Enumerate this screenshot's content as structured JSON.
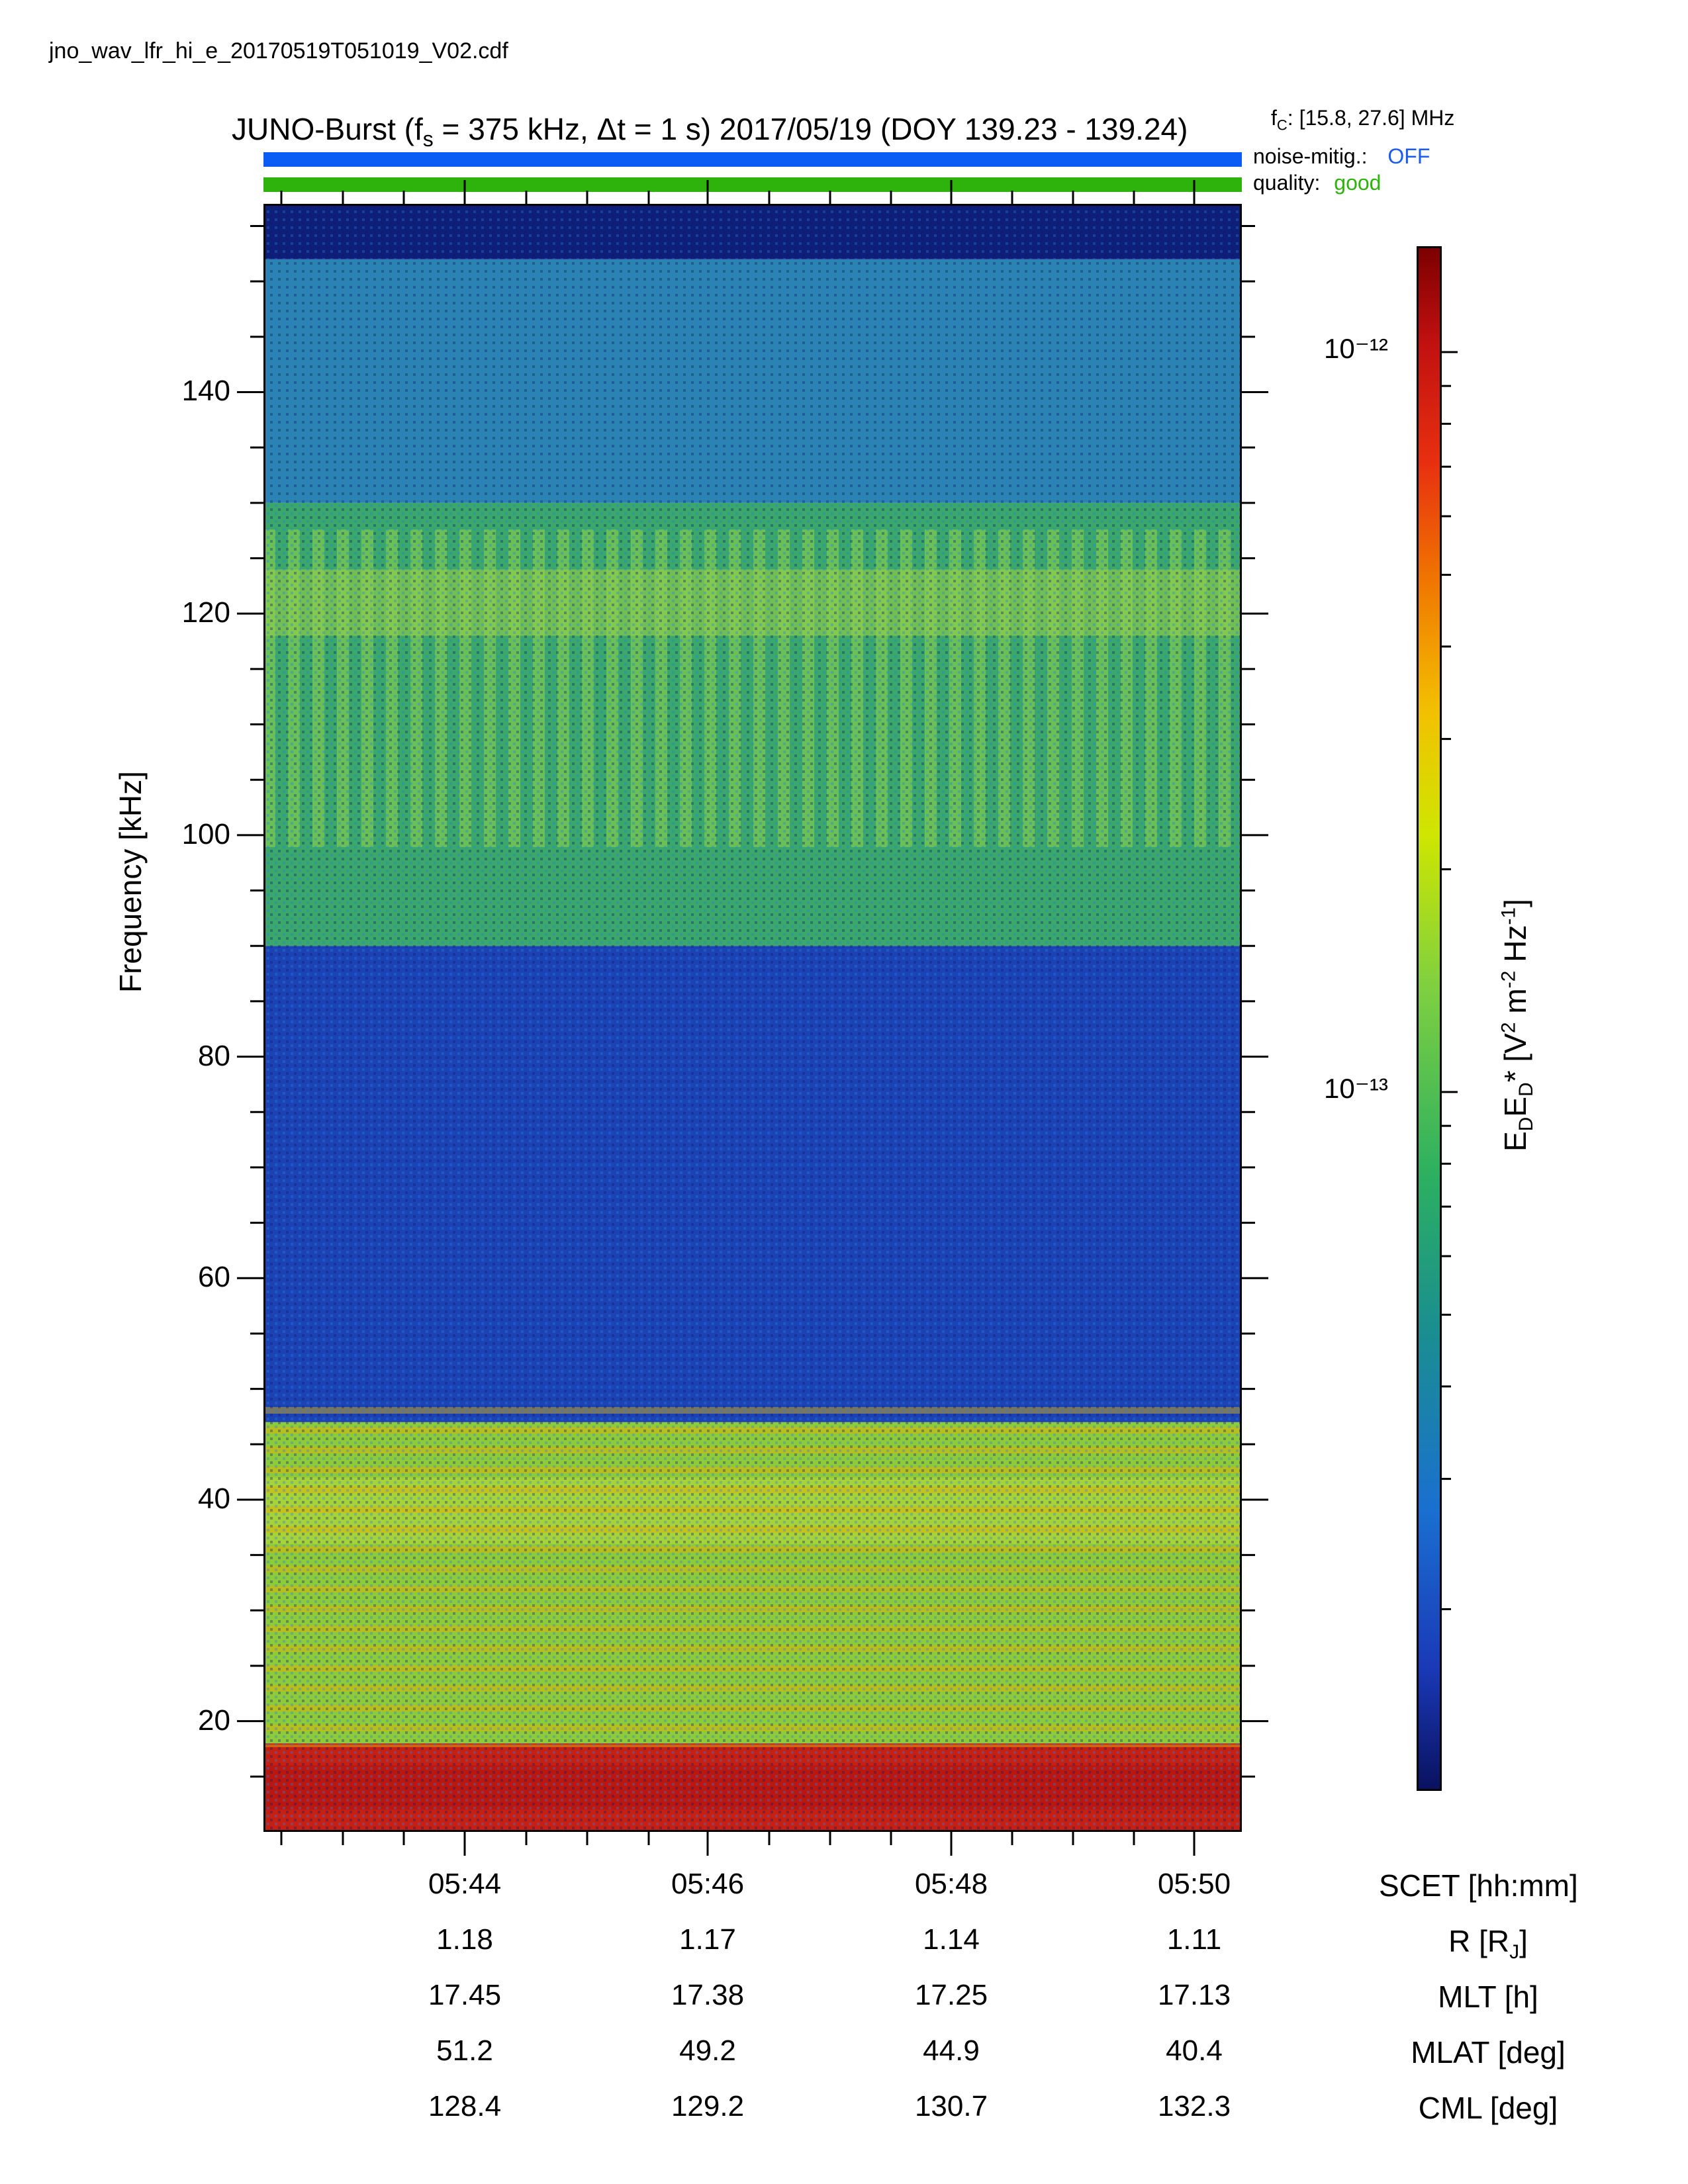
{
  "header": {
    "filename": "jno_wav_lfr_hi_e_20170519T051019_V02.cdf",
    "title_prefix": "JUNO-Burst (f",
    "title_sub": "s",
    "title_suffix": " = 375 kHz, Δt = 1 s)  2017/05/19 (DOY 139.23 - 139.24)",
    "fc_prefix": "f",
    "fc_sub": "C",
    "fc_value": ": [15.8, 27.6] MHz",
    "noise_label": "noise-mitig.:",
    "noise_value": "OFF",
    "quality_label": "quality:",
    "quality_value": "good"
  },
  "colors": {
    "noise_bar": "#0a5cf5",
    "quality_bar": "#2db30c",
    "colormap": [
      "#0a1260",
      "#1a3ab8",
      "#1a6fd0",
      "#1a8f8f",
      "#2db060",
      "#7ed040",
      "#cfe600",
      "#f2c000",
      "#f07a00",
      "#e83010",
      "#7d0000"
    ]
  },
  "chart_data": {
    "type": "heatmap",
    "title": "JUNO-Burst (fs = 375 kHz, Δt = 1 s)  2017/05/19 (DOY 139.23 - 139.24)",
    "ylabel": "Frequency [kHz]",
    "ylim": [
      10,
      157
    ],
    "y_ticks": [
      20,
      40,
      60,
      80,
      100,
      120,
      140
    ],
    "x_ticks": [
      "05:44",
      "05:46",
      "05:48",
      "05:50"
    ],
    "colorbar_label": "E_D E_D* [V² m⁻² Hz⁻¹]",
    "colorbar_scale": "log",
    "colorbar_ticks": [
      "10⁻¹²",
      "10⁻¹³"
    ],
    "features": [
      {
        "band": [
          10,
          18
        ],
        "level": "high",
        "note": "intense emission"
      },
      {
        "band": [
          18,
          47
        ],
        "level": "medium-high",
        "note": "horizontal striations"
      },
      {
        "band": [
          47,
          90
        ],
        "level": "low"
      },
      {
        "band": [
          90,
          130
        ],
        "level": "medium",
        "note": "periodic vertical striations"
      },
      {
        "band": [
          130,
          152
        ],
        "level": "medium-low"
      },
      {
        "band": [
          152,
          157
        ],
        "level": "very low"
      }
    ]
  },
  "ephemeris": {
    "scet_label": "SCET [hh:mm]",
    "rows": [
      {
        "label": "R [R",
        "label_sub": "J",
        "label_end": "]",
        "values": [
          "1.18",
          "1.17",
          "1.14",
          "1.11"
        ]
      },
      {
        "label": "MLT [h]",
        "label_sub": "",
        "label_end": "",
        "values": [
          "17.45",
          "17.38",
          "17.25",
          "17.13"
        ]
      },
      {
        "label": "MLAT [deg]",
        "label_sub": "",
        "label_end": "",
        "values": [
          "51.2",
          "49.2",
          "44.9",
          "40.4"
        ]
      },
      {
        "label": "CML [deg]",
        "label_sub": "",
        "label_end": "",
        "values": [
          "128.4",
          "129.2",
          "130.7",
          "132.3"
        ]
      }
    ]
  }
}
